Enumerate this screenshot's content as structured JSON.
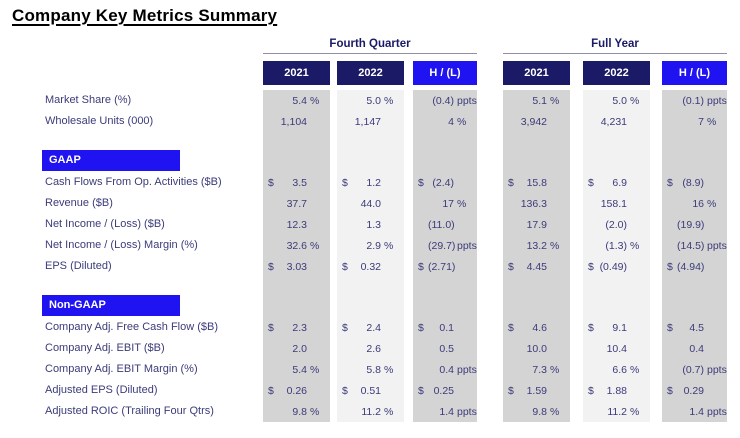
{
  "title": "Company Key Metrics Summary",
  "groups": [
    {
      "label": "Fourth Quarter"
    },
    {
      "label": "Full Year"
    }
  ],
  "column_headers": [
    "2021",
    "2022",
    "H / (L)",
    "2021",
    "2022",
    "H / (L)"
  ],
  "colors": {
    "navy_header": "#1a1a66",
    "bright_blue": "#1f13f2",
    "stripe_dark": "#d4d4d4",
    "stripe_light": "#f2f2f2",
    "text_blue": "#3b3b7a"
  },
  "sections": [
    {
      "name": null,
      "rows": [
        {
          "label": "Market Share (%)",
          "cells": [
            [
              "",
              "5.4",
              "%"
            ],
            [
              "",
              "5.0",
              "%"
            ],
            [
              "",
              "(0.4)",
              "ppts"
            ],
            [
              "",
              "5.1",
              "%"
            ],
            [
              "",
              "5.0",
              "%"
            ],
            [
              "",
              "(0.1)",
              "ppts"
            ]
          ]
        },
        {
          "label": "Wholesale Units (000)",
          "cells": [
            [
              "",
              "1,104",
              ""
            ],
            [
              "",
              "1,147",
              ""
            ],
            [
              "",
              "4",
              "%"
            ],
            [
              "",
              "3,942",
              ""
            ],
            [
              "",
              "4,231",
              ""
            ],
            [
              "",
              "7",
              "%"
            ]
          ]
        }
      ]
    },
    {
      "name": "GAAP",
      "rows": [
        {
          "label": "Cash Flows From Op. Activities ($B)",
          "cells": [
            [
              "$",
              "3.5",
              ""
            ],
            [
              "$",
              "1.2",
              ""
            ],
            [
              "$",
              "(2.4)",
              ""
            ],
            [
              "$",
              "15.8",
              ""
            ],
            [
              "$",
              "6.9",
              ""
            ],
            [
              "$",
              "(8.9)",
              ""
            ]
          ]
        },
        {
          "label": "Revenue ($B)",
          "cells": [
            [
              "",
              "37.7",
              ""
            ],
            [
              "",
              "44.0",
              ""
            ],
            [
              "",
              "17",
              "%"
            ],
            [
              "",
              "136.3",
              ""
            ],
            [
              "",
              "158.1",
              ""
            ],
            [
              "",
              "16",
              "%"
            ]
          ]
        },
        {
          "label": "Net Income / (Loss) ($B)",
          "cells": [
            [
              "",
              "12.3",
              ""
            ],
            [
              "",
              "1.3",
              ""
            ],
            [
              "",
              "(11.0)",
              ""
            ],
            [
              "",
              "17.9",
              ""
            ],
            [
              "",
              "(2.0)",
              ""
            ],
            [
              "",
              "(19.9)",
              ""
            ]
          ]
        },
        {
          "label": "Net Income / (Loss) Margin (%)",
          "cells": [
            [
              "",
              "32.6",
              "%"
            ],
            [
              "",
              "2.9",
              "%"
            ],
            [
              "",
              "(29.7)",
              "ppts"
            ],
            [
              "",
              "13.2",
              "%"
            ],
            [
              "",
              "(1.3)",
              "%"
            ],
            [
              "",
              "(14.5)",
              "ppts"
            ]
          ]
        },
        {
          "label": "EPS (Diluted)",
          "cells": [
            [
              "$",
              "3.03",
              ""
            ],
            [
              "$",
              "0.32",
              ""
            ],
            [
              "$",
              "(2.71)",
              ""
            ],
            [
              "$",
              "4.45",
              ""
            ],
            [
              "$",
              "(0.49)",
              ""
            ],
            [
              "$",
              "(4.94)",
              ""
            ]
          ]
        }
      ]
    },
    {
      "name": "Non-GAAP",
      "rows": [
        {
          "label": "Company Adj. Free Cash Flow ($B)",
          "cells": [
            [
              "$",
              "2.3",
              ""
            ],
            [
              "$",
              "2.4",
              ""
            ],
            [
              "$",
              "0.1",
              ""
            ],
            [
              "$",
              "4.6",
              ""
            ],
            [
              "$",
              "9.1",
              ""
            ],
            [
              "$",
              "4.5",
              ""
            ]
          ]
        },
        {
          "label": "Company Adj. EBIT ($B)",
          "cells": [
            [
              "",
              "2.0",
              ""
            ],
            [
              "",
              "2.6",
              ""
            ],
            [
              "",
              "0.5",
              ""
            ],
            [
              "",
              "10.0",
              ""
            ],
            [
              "",
              "10.4",
              ""
            ],
            [
              "",
              "0.4",
              ""
            ]
          ]
        },
        {
          "label": "Company Adj. EBIT Margin (%)",
          "cells": [
            [
              "",
              "5.4",
              "%"
            ],
            [
              "",
              "5.8",
              "%"
            ],
            [
              "",
              "0.4",
              "ppts"
            ],
            [
              "",
              "7.3",
              "%"
            ],
            [
              "",
              "6.6",
              "%"
            ],
            [
              "",
              "(0.7)",
              "ppts"
            ]
          ]
        },
        {
          "label": "Adjusted EPS (Diluted)",
          "cells": [
            [
              "$",
              "0.26",
              ""
            ],
            [
              "$",
              "0.51",
              ""
            ],
            [
              "$",
              "0.25",
              ""
            ],
            [
              "$",
              "1.59",
              ""
            ],
            [
              "$",
              "1.88",
              ""
            ],
            [
              "$",
              "0.29",
              ""
            ]
          ]
        },
        {
          "label": "Adjusted ROIC (Trailing Four Qtrs)",
          "cells": [
            [
              "",
              "9.8",
              "%"
            ],
            [
              "",
              "11.2",
              "%"
            ],
            [
              "",
              "1.4",
              "ppts"
            ],
            [
              "",
              "9.8",
              "%"
            ],
            [
              "",
              "11.2",
              "%"
            ],
            [
              "",
              "1.4",
              "ppts"
            ]
          ]
        }
      ]
    }
  ]
}
